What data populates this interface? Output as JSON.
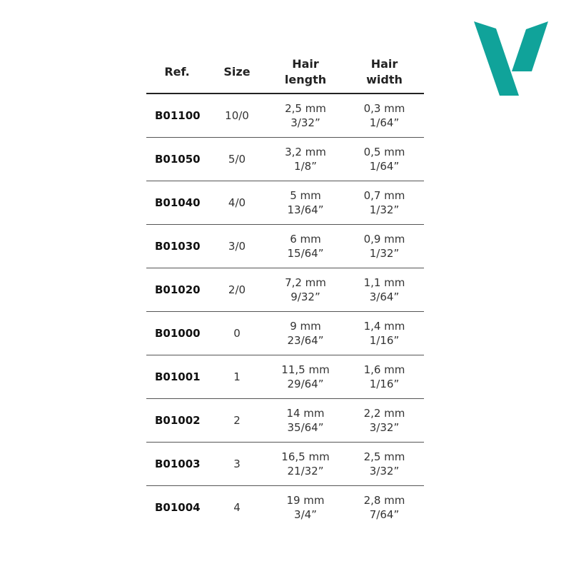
{
  "brand": {
    "logo": "V",
    "color": "#10a39a"
  },
  "table": {
    "headers": [
      {
        "line1": "Ref.",
        "line2": ""
      },
      {
        "line1": "Size",
        "line2": ""
      },
      {
        "line1": "Hair",
        "line2": "length"
      },
      {
        "line1": "Hair",
        "line2": "width"
      }
    ],
    "rows": [
      {
        "ref": "B01100",
        "size": "10/0",
        "length_mm": "2,5 mm",
        "length_in": "3/32”",
        "width_mm": "0,3 mm",
        "width_in": "1/64”"
      },
      {
        "ref": "B01050",
        "size": "5/0",
        "length_mm": "3,2 mm",
        "length_in": "1/8”",
        "width_mm": "0,5 mm",
        "width_in": "1/64”"
      },
      {
        "ref": "B01040",
        "size": "4/0",
        "length_mm": "5 mm",
        "length_in": "13/64”",
        "width_mm": "0,7 mm",
        "width_in": "1/32”"
      },
      {
        "ref": "B01030",
        "size": "3/0",
        "length_mm": "6 mm",
        "length_in": "15/64”",
        "width_mm": "0,9 mm",
        "width_in": "1/32”"
      },
      {
        "ref": "B01020",
        "size": "2/0",
        "length_mm": "7,2 mm",
        "length_in": "9/32”",
        "width_mm": "1,1 mm",
        "width_in": "3/64”"
      },
      {
        "ref": "B01000",
        "size": "0",
        "length_mm": "9 mm",
        "length_in": "23/64”",
        "width_mm": "1,4 mm",
        "width_in": "1/16”"
      },
      {
        "ref": "B01001",
        "size": "1",
        "length_mm": "11,5 mm",
        "length_in": "29/64”",
        "width_mm": "1,6 mm",
        "width_in": "1/16”"
      },
      {
        "ref": "B01002",
        "size": "2",
        "length_mm": "14 mm",
        "length_in": "35/64”",
        "width_mm": "2,2 mm",
        "width_in": "3/32”"
      },
      {
        "ref": "B01003",
        "size": "3",
        "length_mm": "16,5 mm",
        "length_in": "21/32”",
        "width_mm": "2,5 mm",
        "width_in": "3/32”"
      },
      {
        "ref": "B01004",
        "size": "4",
        "length_mm": "19 mm",
        "length_in": "3/4”",
        "width_mm": "2,8 mm",
        "width_in": "7/64”"
      }
    ]
  }
}
